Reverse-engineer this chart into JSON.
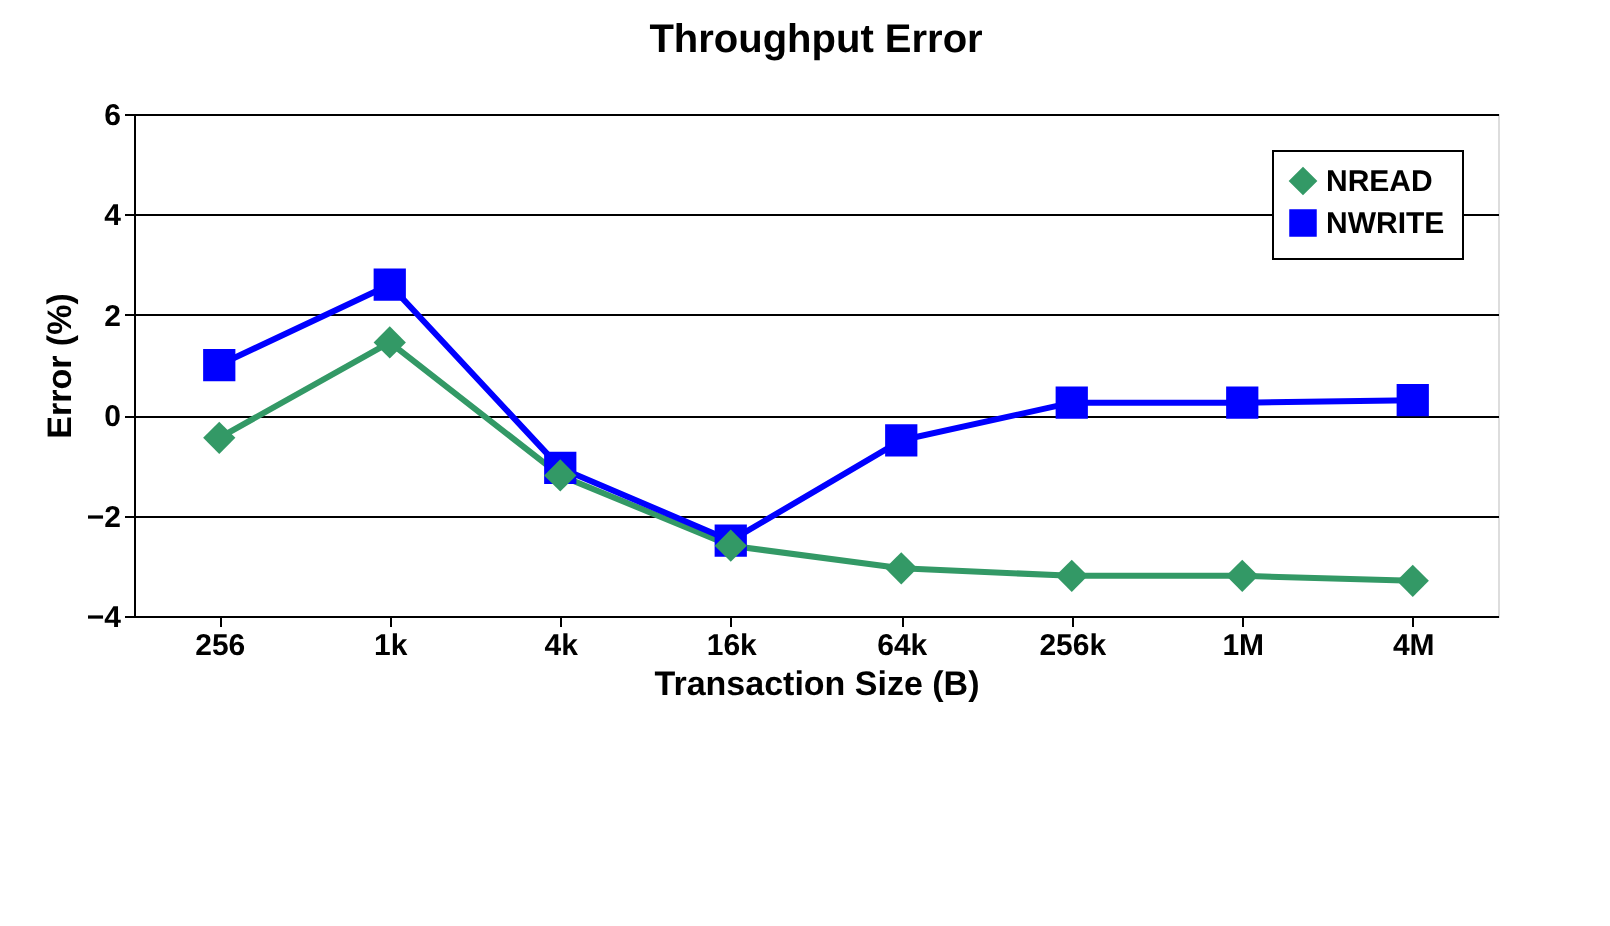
{
  "chart_data": {
    "type": "line",
    "title": "Throughput Error",
    "xlabel": "Transaction Size (B)",
    "ylabel": "Error (%)",
    "categories": [
      "256",
      "1k",
      "4k",
      "16k",
      "64k",
      "256k",
      "1M",
      "4M"
    ],
    "series": [
      {
        "name": "NREAD",
        "color": "#339966",
        "marker": "diamond",
        "values": [
          -0.45,
          1.45,
          -1.2,
          -2.6,
          -3.05,
          -3.2,
          -3.2,
          -3.3
        ]
      },
      {
        "name": "NWRITE",
        "color": "#0000ff",
        "marker": "square",
        "values": [
          1.0,
          2.6,
          -1.05,
          -2.5,
          -0.5,
          0.25,
          0.25,
          0.3
        ]
      }
    ],
    "ylim": [
      -4,
      6
    ],
    "yticks": [
      -4,
      -2,
      0,
      2,
      4,
      6
    ],
    "grid": "y",
    "legend": "top right",
    "line_style": "solid"
  }
}
